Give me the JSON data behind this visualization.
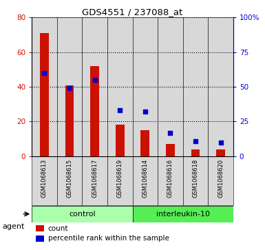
{
  "title": "GDS4551 / 237088_at",
  "samples": [
    "GSM1068613",
    "GSM1068615",
    "GSM1068617",
    "GSM1068619",
    "GSM1068614",
    "GSM1068616",
    "GSM1068618",
    "GSM1068620"
  ],
  "counts": [
    71,
    41,
    52,
    18,
    15,
    7,
    4,
    4
  ],
  "percentiles": [
    60,
    49,
    55,
    33,
    32,
    17,
    11,
    10
  ],
  "groups": [
    {
      "label": "control",
      "indices": [
        0,
        3
      ],
      "color": "#aaffaa"
    },
    {
      "label": "interleukin-10",
      "indices": [
        4,
        7
      ],
      "color": "#55ee55"
    }
  ],
  "bar_color": "#cc1100",
  "dot_color": "#0000cc",
  "plot_bg": "#ffffff",
  "cell_bg": "#d8d8d8",
  "ylim_left": [
    0,
    80
  ],
  "ylim_right": [
    0,
    100
  ],
  "yticks_left": [
    0,
    20,
    40,
    60,
    80
  ],
  "ytick_labels_left": [
    "0",
    "20",
    "40",
    "60",
    "80"
  ],
  "yticks_right": [
    0,
    25,
    50,
    75,
    100
  ],
  "ytick_labels_right": [
    "0",
    "25",
    "50",
    "75",
    "100%"
  ],
  "agent_label": "agent",
  "legend_count": "count",
  "legend_percentile": "percentile rank within the sample"
}
